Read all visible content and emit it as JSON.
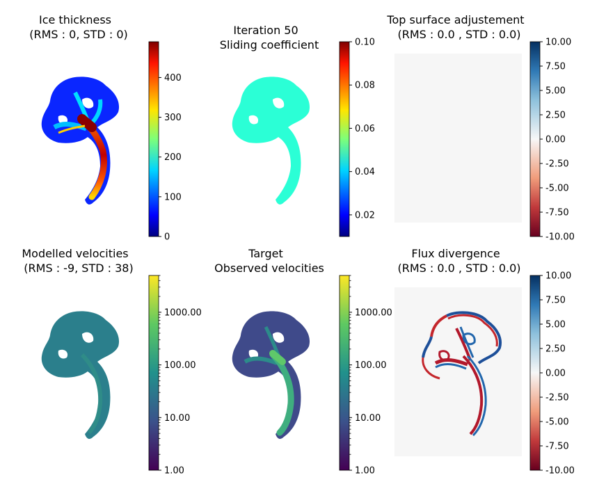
{
  "chart_data": [
    {
      "type": "heatmap",
      "title_line1": "Ice thickness",
      "title_line2": "(RMS : 0, STD : 0)",
      "colormap": "jet",
      "colorbar": {
        "scale": "linear",
        "range": [
          0,
          490
        ],
        "ticks": [
          "0",
          "100",
          "200",
          "300",
          "400"
        ]
      }
    },
    {
      "type": "heatmap",
      "title_line1": "Iteration 50",
      "title_line2": "Sliding coefficient",
      "colormap": "jet",
      "uniform_value": 0.05,
      "colorbar": {
        "scale": "linear",
        "range": [
          0.01,
          0.1
        ],
        "ticks": [
          "0.02",
          "0.04",
          "0.06",
          "0.08",
          "0.10"
        ]
      }
    },
    {
      "type": "heatmap",
      "title_line1": "Top surface adjustement",
      "title_line2": "(RMS :   0.0 , STD :   0.0)",
      "colormap": "RdBu",
      "uniform_value": 0.0,
      "colorbar": {
        "scale": "linear",
        "range": [
          -10,
          10
        ],
        "ticks": [
          "10.00",
          "7.50",
          "5.00",
          "2.50",
          "0.00",
          "-2.50",
          "-5.00",
          "-7.50",
          "-10.00"
        ]
      }
    },
    {
      "type": "heatmap",
      "title_line1": "Modelled velocities",
      "title_line2": "(RMS : -9, STD : 38)",
      "colormap": "viridis",
      "colorbar": {
        "scale": "log",
        "range": [
          1,
          5000
        ],
        "ticks": [
          "1000.00",
          "100.00",
          "10.00",
          "1.00"
        ]
      }
    },
    {
      "type": "heatmap",
      "title_line1": "Target",
      "title_line2": "Observed velocities",
      "colormap": "viridis",
      "colorbar": {
        "scale": "log",
        "range": [
          1,
          5000
        ],
        "ticks": [
          "1000.00",
          "100.00",
          "10.00",
          "1.00"
        ]
      }
    },
    {
      "type": "heatmap",
      "title_line1": "Flux divergence",
      "title_line2": "(RMS :   0.0 , STD :   0.0)",
      "colormap": "RdBu",
      "colorbar": {
        "scale": "linear",
        "range": [
          -10,
          10
        ],
        "ticks": [
          "10.00",
          "7.50",
          "5.00",
          "2.50",
          "0.00",
          "-2.50",
          "-5.00",
          "-7.50",
          "-10.00"
        ]
      }
    }
  ]
}
